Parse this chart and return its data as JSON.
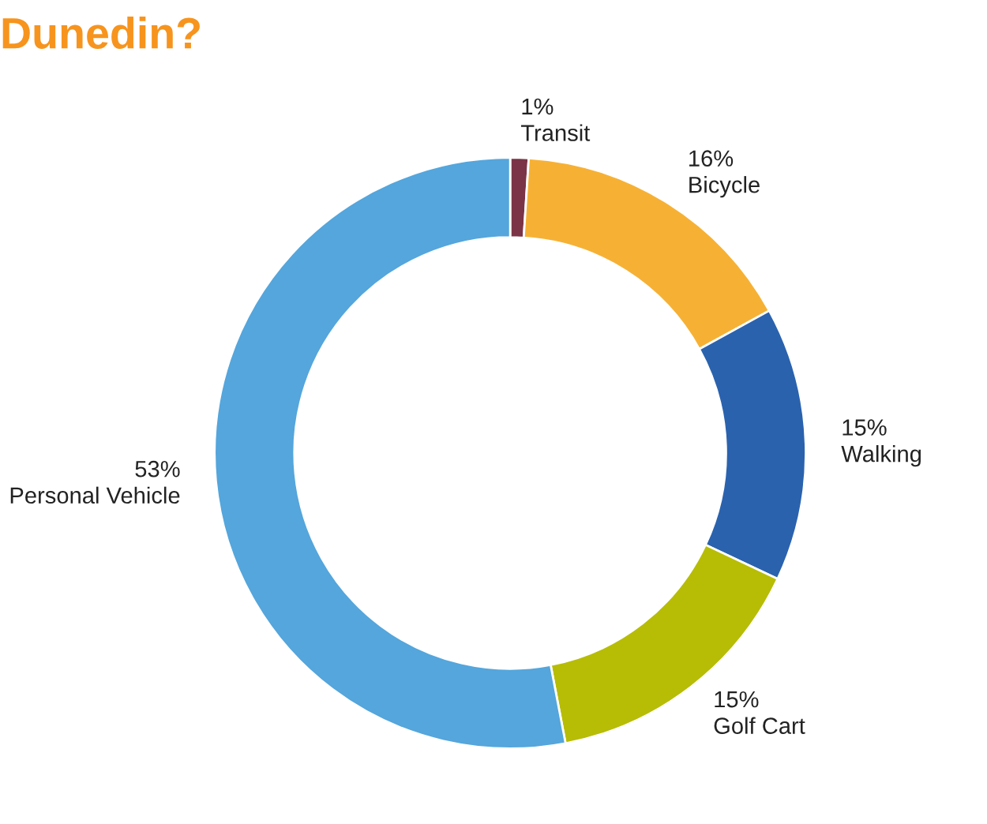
{
  "chart_data": {
    "type": "donut",
    "title": "Dunedin?",
    "categories": [
      "Transit",
      "Bicycle",
      "Walking",
      "Golf Cart",
      "Personal Vehicle"
    ],
    "values": [
      1,
      16,
      15,
      15,
      53
    ],
    "colors": [
      "#7b3347",
      "#f6b134",
      "#2a62ae",
      "#b6bd04",
      "#54a6dc"
    ],
    "value_labels": [
      "1%",
      "16%",
      "15%",
      "15%",
      "53%"
    ]
  }
}
